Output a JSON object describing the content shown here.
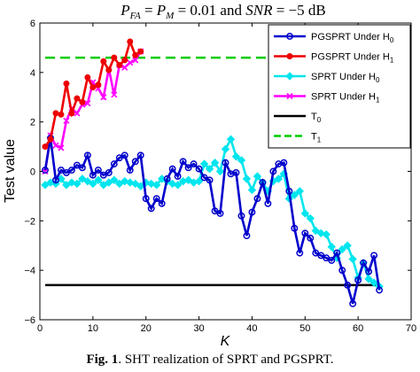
{
  "chart_data": {
    "type": "line",
    "title": "P_FA = P_M = 0.01 and SNR = -5 dB",
    "xlabel": "K",
    "ylabel": "Test value",
    "xlim": [
      0,
      70
    ],
    "ylim": [
      -6,
      6
    ],
    "xticks": [
      0,
      10,
      20,
      30,
      40,
      50,
      60,
      70
    ],
    "yticks": [
      -6,
      -4,
      -2,
      0,
      2,
      4,
      6
    ],
    "grid": false,
    "legend_position": "top-right",
    "series": [
      {
        "name": "PGSPRT Under H0",
        "color": "#0000cc",
        "marker": "circle",
        "x": [
          1,
          2,
          3,
          4,
          5,
          6,
          7,
          8,
          9,
          10,
          11,
          12,
          13,
          14,
          15,
          16,
          17,
          18,
          19,
          20,
          21,
          22,
          23,
          24,
          25,
          26,
          27,
          28,
          29,
          30,
          31,
          32,
          33,
          34,
          35,
          36,
          37,
          38,
          39,
          40,
          41,
          42,
          43,
          44,
          45,
          46,
          47,
          48,
          49,
          50,
          51,
          52,
          53,
          54,
          55,
          56,
          57,
          58,
          59,
          60,
          61,
          62,
          63,
          64
        ],
        "values": [
          0.05,
          1.35,
          -0.35,
          0.05,
          -0.05,
          0.05,
          0.25,
          0.15,
          0.65,
          -0.15,
          0.05,
          -0.15,
          -0.05,
          0.3,
          0.55,
          0.65,
          0.05,
          0.4,
          0.65,
          -1.1,
          -1.5,
          -1.1,
          -1.3,
          -0.3,
          0.1,
          -0.2,
          0.4,
          0.15,
          0.3,
          0.1,
          -0.25,
          -0.35,
          -1.6,
          -1.7,
          0.35,
          -0.1,
          -0.05,
          -1.8,
          -2.6,
          -1.65,
          -1.1,
          -0.45,
          -1.3,
          0.0,
          0.3,
          0.35,
          -0.8,
          -2.3,
          -3.3,
          -2.5,
          -2.7,
          -3.3,
          -3.4,
          -3.5,
          -3.6,
          -3.3,
          -4.0,
          -4.6,
          -5.35,
          -4.4,
          -3.7,
          -4.05,
          -3.4,
          -4.8
        ]
      },
      {
        "name": "PGSPRT Under H1",
        "color": "#ee0000",
        "marker": "dot",
        "x": [
          1,
          2,
          3,
          4,
          5,
          6,
          7,
          8,
          9,
          10,
          11,
          12,
          13,
          14,
          15,
          16,
          17,
          18,
          19
        ],
        "values": [
          1.0,
          1.3,
          2.35,
          2.3,
          3.55,
          2.35,
          2.95,
          2.8,
          3.8,
          3.4,
          3.5,
          4.45,
          4.1,
          4.6,
          4.3,
          4.5,
          5.25,
          4.7,
          4.85
        ]
      },
      {
        "name": "SPRT Under H0",
        "color": "#00e5ee",
        "marker": "diamond",
        "x": [
          1,
          2,
          3,
          4,
          5,
          6,
          7,
          8,
          9,
          10,
          11,
          12,
          13,
          14,
          15,
          16,
          17,
          18,
          19,
          20,
          21,
          22,
          23,
          24,
          25,
          26,
          27,
          28,
          29,
          30,
          31,
          32,
          33,
          34,
          35,
          36,
          37,
          38,
          39,
          40,
          41,
          42,
          43,
          44,
          45,
          46,
          47,
          48,
          49,
          50,
          51,
          52,
          53,
          54,
          55,
          56,
          57,
          58,
          59,
          60,
          61,
          62,
          63,
          64
        ],
        "values": [
          -0.55,
          -0.45,
          -0.5,
          -0.3,
          -0.55,
          -0.45,
          -0.5,
          -0.3,
          -0.4,
          -0.5,
          -0.35,
          -0.55,
          -0.45,
          -0.35,
          -0.5,
          -0.4,
          -0.45,
          -0.5,
          -0.6,
          -0.45,
          -0.5,
          -0.55,
          -0.3,
          -0.4,
          -0.5,
          -0.55,
          -0.4,
          -0.35,
          -0.45,
          -0.4,
          0.3,
          0.1,
          0.35,
          0.0,
          0.9,
          1.3,
          0.6,
          0.45,
          -0.3,
          -0.75,
          -0.2,
          -0.45,
          -0.8,
          -0.4,
          -0.3,
          -0.1,
          -1.1,
          -0.95,
          -0.8,
          -1.7,
          -1.9,
          -2.4,
          -2.5,
          -2.55,
          -3.05,
          -3.5,
          -3.15,
          -3.0,
          -3.55,
          -4.3,
          -3.7,
          -4.35,
          -4.5,
          -4.65
        ]
      },
      {
        "name": "SPRT Under H1",
        "color": "#ff00ff",
        "marker": "x",
        "x": [
          1,
          2,
          3,
          4,
          5,
          6,
          7,
          8,
          9,
          10,
          11,
          12,
          13,
          14,
          15,
          16,
          17,
          18,
          19
        ],
        "values": [
          0.0,
          1.45,
          1.05,
          0.95,
          2.05,
          2.55,
          2.35,
          2.7,
          2.75,
          3.6,
          3.35,
          3.0,
          4.15,
          3.1,
          4.3,
          4.2,
          4.4,
          4.5,
          4.85
        ]
      },
      {
        "name": "T0",
        "color": "#000000",
        "style": "solid",
        "x": [
          1,
          64
        ],
        "values": [
          -4.6,
          -4.6
        ]
      },
      {
        "name": "T1",
        "color": "#00cc00",
        "style": "dashed",
        "x": [
          1,
          64
        ],
        "values": [
          4.6,
          4.6
        ]
      }
    ]
  },
  "caption": {
    "label": "Fig. 1",
    "text": ". SHT realization of SPRT and PGSPRT."
  }
}
